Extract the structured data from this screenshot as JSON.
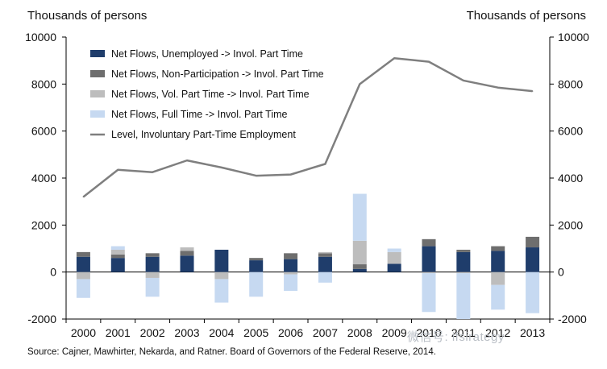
{
  "chart_data": {
    "type": "bar",
    "title": "",
    "ylabel_left": "Thousands of persons",
    "ylabel_right": "Thousands of persons",
    "ylim": [
      -2000,
      10000
    ],
    "yticks": [
      -2000,
      0,
      2000,
      4000,
      6000,
      8000,
      10000
    ],
    "grid": false,
    "legend_position": "top-left",
    "categories": [
      "2000",
      "2001",
      "2002",
      "2003",
      "2004",
      "2005",
      "2006",
      "2007",
      "2008",
      "2009",
      "2010",
      "2011",
      "2012",
      "2013"
    ],
    "stacked_series": [
      {
        "name": "Net Flows, Unemployed -> Invol. Part Time",
        "color": "#1f3d6b",
        "values": [
          650,
          600,
          650,
          700,
          950,
          500,
          550,
          650,
          130,
          350,
          1100,
          850,
          900,
          1050
        ]
      },
      {
        "name": "Net Flows, Non-Participation -> Invol. Part Time",
        "color": "#6e6e6e",
        "values": [
          200,
          150,
          150,
          200,
          0,
          100,
          250,
          150,
          200,
          0,
          300,
          100,
          200,
          450
        ]
      },
      {
        "name": "Net Flows, Vol. Part Time -> Invol. Part Time",
        "color": "#bdbdbd",
        "values": [
          -300,
          200,
          -250,
          150,
          -300,
          0,
          -100,
          50,
          1000,
          500,
          -50,
          -50,
          -550,
          0
        ]
      },
      {
        "name": "Net Flows, Full Time -> Invol. Part Time",
        "color": "#c6d9f1",
        "values": [
          -800,
          150,
          -800,
          0,
          -1000,
          -1050,
          -700,
          -450,
          2000,
          150,
          -1650,
          -1950,
          -1050,
          -1750
        ]
      }
    ],
    "line_series": {
      "name": "Level, Involuntary Part-Time Employment",
      "color": "#7f7f7f",
      "values": [
        3200,
        4350,
        4250,
        4750,
        4450,
        4100,
        4150,
        4600,
        8000,
        9100,
        8950,
        8150,
        7850,
        7700
      ]
    },
    "source": "Source: Cajner, Mawhirter, Nekarda, and Ratner.  Board of Governors of the Federal Reserve, 2014.",
    "watermark": "微信号: ifsirategy"
  }
}
